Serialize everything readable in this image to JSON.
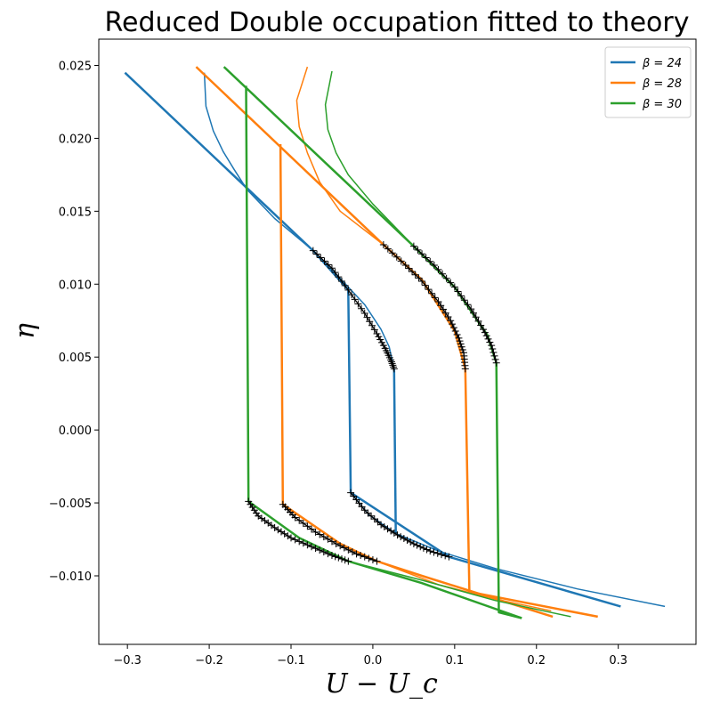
{
  "chart_data": {
    "type": "line",
    "title": "Reduced Double occupation fitted to theory",
    "xlabel": "U − U_c",
    "ylabel": "η",
    "xlim": [
      -0.335,
      0.395
    ],
    "ylim": [
      -0.0147,
      0.0268
    ],
    "xticks": [
      -0.3,
      -0.2,
      -0.1,
      0.0,
      0.1,
      0.2,
      0.3
    ],
    "xtick_labels": [
      "−0.3",
      "−0.2",
      "−0.1",
      "0.0",
      "0.1",
      "0.2",
      "0.3"
    ],
    "yticks": [
      -0.01,
      -0.005,
      0.0,
      0.005,
      0.01,
      0.015,
      0.02,
      0.025
    ],
    "ytick_labels": [
      "−0.010",
      "−0.005",
      "0.000",
      "0.005",
      "0.010",
      "0.015",
      "0.020",
      "0.025"
    ],
    "legend_position": "top-right",
    "series": [
      {
        "name": "β = 24",
        "color": "#1f77b4",
        "thick": [
          [
            -0.303,
            0.0245
          ],
          [
            -0.073,
            0.0123
          ],
          [
            -0.03,
            0.0096
          ],
          [
            -0.027,
            -0.0043
          ],
          [
            0.093,
            -0.0087
          ],
          [
            0.303,
            -0.0121
          ]
        ],
        "thick2": [
          [
            0.026,
            0.0042
          ],
          [
            0.028,
            -0.0071
          ]
        ],
        "thin": [
          [
            -0.206,
            0.0245
          ],
          [
            -0.204,
            0.0222
          ],
          [
            -0.195,
            0.0205
          ],
          [
            -0.183,
            0.0191
          ],
          [
            -0.17,
            0.0179
          ],
          [
            -0.154,
            0.0165
          ],
          [
            -0.12,
            0.0145
          ],
          [
            -0.073,
            0.0123
          ],
          [
            -0.04,
            0.0104
          ],
          [
            -0.01,
            0.0086
          ],
          [
            0.01,
            0.0069
          ],
          [
            0.02,
            0.0057
          ],
          [
            0.026,
            0.0042
          ]
        ],
        "thin2": [
          [
            -0.027,
            -0.0043
          ],
          [
            -0.005,
            -0.0058
          ],
          [
            0.028,
            -0.0071
          ],
          [
            0.08,
            -0.0083
          ],
          [
            0.15,
            -0.0095
          ],
          [
            0.25,
            -0.0109
          ],
          [
            0.357,
            -0.0121
          ]
        ]
      },
      {
        "name": "β = 28",
        "color": "#ff7f0e",
        "thick": [
          [
            -0.216,
            0.0249
          ],
          [
            0.013,
            0.0127
          ],
          [
            0.06,
            0.0103
          ],
          [
            0.1,
            0.0068
          ],
          [
            0.113,
            0.0042
          ],
          [
            0.118,
            -0.0111
          ],
          [
            0.275,
            -0.0128
          ]
        ],
        "thick2": [
          [
            -0.113,
            0.0196
          ],
          [
            -0.11,
            -0.0051
          ],
          [
            -0.04,
            -0.0078
          ],
          [
            0.005,
            -0.009
          ],
          [
            0.06,
            -0.01
          ],
          [
            0.22,
            -0.0128
          ]
        ],
        "thin": [
          [
            -0.08,
            0.0249
          ],
          [
            -0.093,
            0.0226
          ],
          [
            -0.09,
            0.0208
          ],
          [
            -0.08,
            0.019
          ],
          [
            -0.065,
            0.017
          ],
          [
            -0.04,
            0.015
          ],
          [
            0.013,
            0.0127
          ]
        ],
        "thin2": [
          [
            0.005,
            -0.009
          ],
          [
            0.08,
            -0.0106
          ],
          [
            0.15,
            -0.0116
          ],
          [
            0.218,
            -0.0124
          ]
        ]
      },
      {
        "name": "β = 30",
        "color": "#2ca02c",
        "thick": [
          [
            -0.182,
            0.0249
          ],
          [
            0.05,
            0.0126
          ],
          [
            0.1,
            0.0098
          ],
          [
            0.14,
            0.0065
          ],
          [
            0.151,
            0.0046
          ],
          [
            0.154,
            -0.0125
          ],
          [
            0.182,
            -0.0129
          ]
        ],
        "thick2": [
          [
            -0.155,
            0.0236
          ],
          [
            -0.152,
            -0.0049
          ],
          [
            -0.09,
            -0.0074
          ],
          [
            -0.03,
            -0.009
          ],
          [
            0.06,
            -0.0105
          ],
          [
            0.182,
            -0.0129
          ]
        ],
        "thin": [
          [
            -0.05,
            0.0246
          ],
          [
            -0.058,
            0.0223
          ],
          [
            -0.055,
            0.0206
          ],
          [
            -0.045,
            0.019
          ],
          [
            -0.03,
            0.0175
          ],
          [
            0.0,
            0.0155
          ],
          [
            0.05,
            0.0126
          ]
        ],
        "thin2": [
          [
            -0.03,
            -0.009
          ],
          [
            0.06,
            -0.0103
          ],
          [
            0.15,
            -0.0117
          ],
          [
            0.242,
            -0.0128
          ]
        ]
      }
    ],
    "fits": [
      [
        [
          -0.073,
          0.0123
        ],
        [
          -0.05,
          0.0111
        ],
        [
          -0.03,
          0.0096
        ],
        [
          -0.01,
          0.008
        ],
        [
          0.005,
          0.0066
        ],
        [
          0.015,
          0.0056
        ],
        [
          0.022,
          0.0048
        ],
        [
          0.026,
          0.0042
        ]
      ],
      [
        [
          -0.027,
          -0.0043
        ],
        [
          -0.01,
          -0.0055
        ],
        [
          0.01,
          -0.0065
        ],
        [
          0.03,
          -0.0072
        ],
        [
          0.05,
          -0.0078
        ],
        [
          0.07,
          -0.0083
        ],
        [
          0.093,
          -0.0087
        ]
      ],
      [
        [
          0.013,
          0.0127
        ],
        [
          0.04,
          0.0113
        ],
        [
          0.06,
          0.0102
        ],
        [
          0.08,
          0.0088
        ],
        [
          0.095,
          0.0075
        ],
        [
          0.105,
          0.0063
        ],
        [
          0.111,
          0.0053
        ],
        [
          0.113,
          0.0042
        ]
      ],
      [
        [
          -0.11,
          -0.0051
        ],
        [
          -0.095,
          -0.006
        ],
        [
          -0.07,
          -0.007
        ],
        [
          -0.045,
          -0.0078
        ],
        [
          -0.02,
          -0.0085
        ],
        [
          0.005,
          -0.009
        ]
      ],
      [
        [
          0.05,
          0.0126
        ],
        [
          0.075,
          0.0113
        ],
        [
          0.1,
          0.0098
        ],
        [
          0.12,
          0.0083
        ],
        [
          0.135,
          0.0069
        ],
        [
          0.145,
          0.0058
        ],
        [
          0.151,
          0.0046
        ]
      ],
      [
        [
          -0.152,
          -0.0049
        ],
        [
          -0.14,
          -0.0059
        ],
        [
          -0.12,
          -0.0067
        ],
        [
          -0.1,
          -0.0074
        ],
        [
          -0.075,
          -0.008
        ],
        [
          -0.05,
          -0.0086
        ],
        [
          -0.03,
          -0.009
        ]
      ]
    ]
  }
}
